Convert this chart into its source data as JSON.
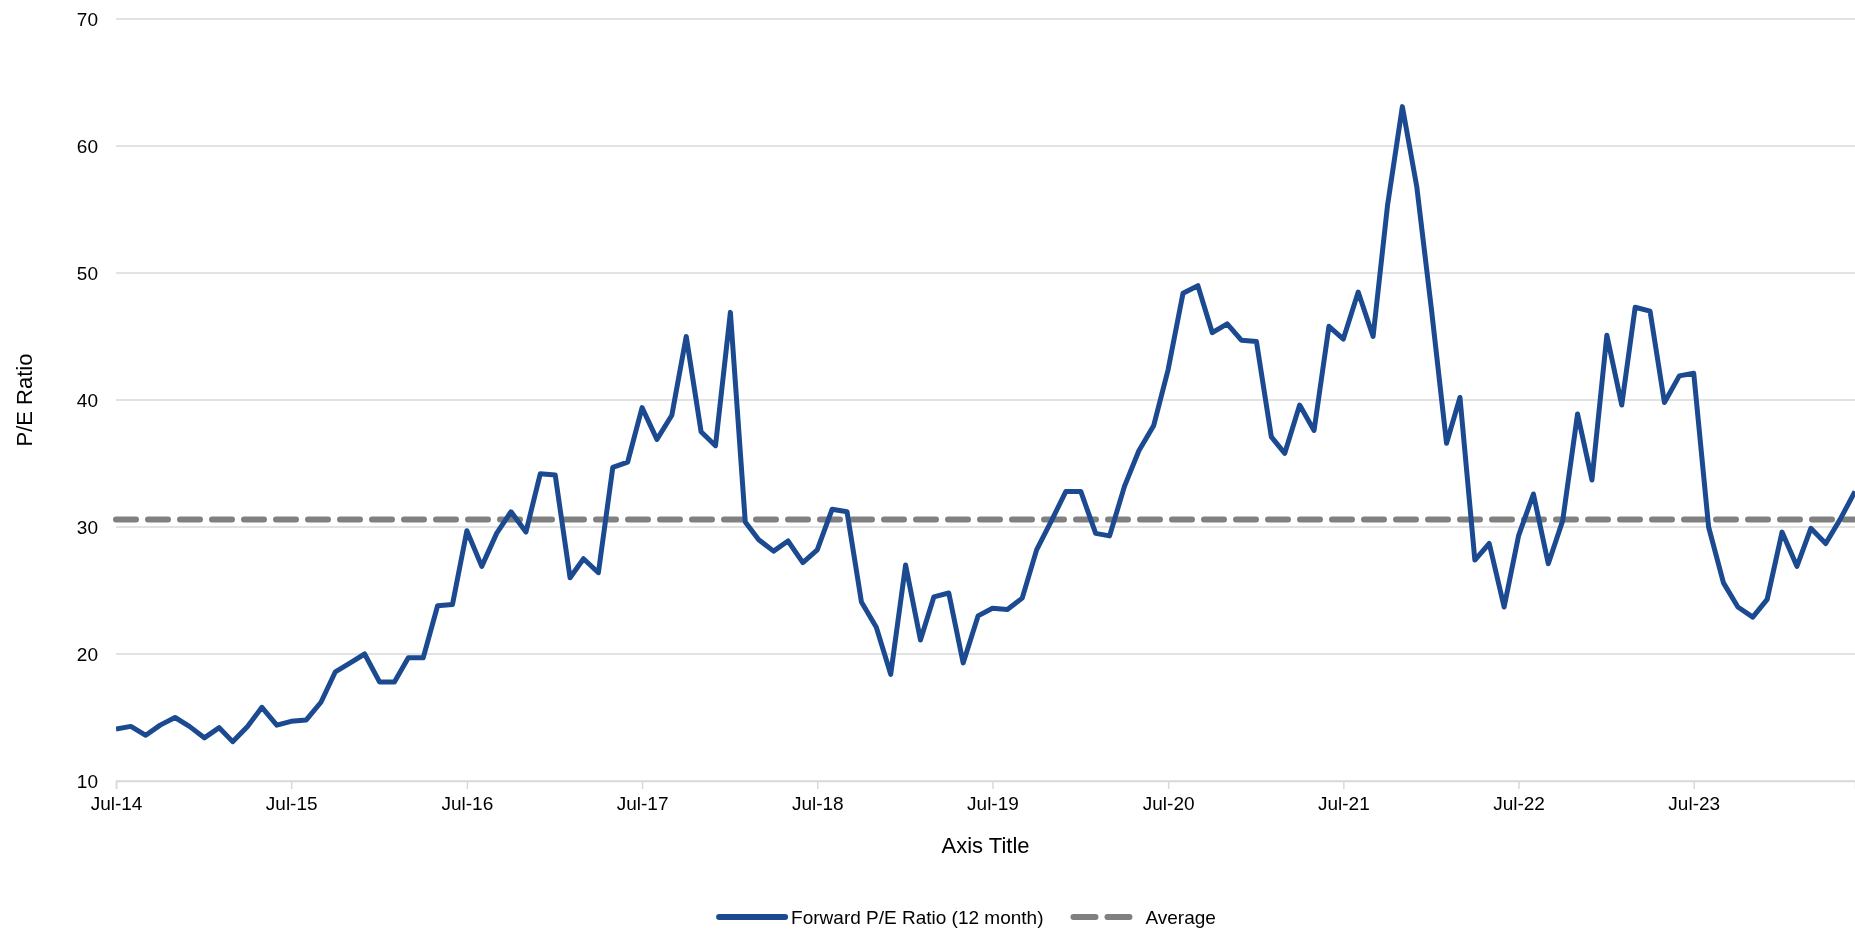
{
  "chart_data": {
    "type": "line",
    "xlabel": "Axis Title",
    "ylabel": "P/E Ratio",
    "x": [
      "2014-07",
      "2014-08",
      "2014-09",
      "2014-10",
      "2014-11",
      "2014-12",
      "2015-01",
      "2015-02",
      "2015-03",
      "2015-04",
      "2015-05",
      "2015-06",
      "2015-07",
      "2015-08",
      "2015-09",
      "2015-10",
      "2015-11",
      "2015-12",
      "2016-01",
      "2016-02",
      "2016-03",
      "2016-04",
      "2016-05",
      "2016-06",
      "2016-07",
      "2016-08",
      "2016-09",
      "2016-10",
      "2016-11",
      "2016-12",
      "2017-01",
      "2017-02",
      "2017-03",
      "2017-04",
      "2017-05",
      "2017-06",
      "2017-07",
      "2017-08",
      "2017-09",
      "2017-10",
      "2017-11",
      "2017-12",
      "2018-01",
      "2018-02",
      "2018-03",
      "2018-04",
      "2018-05",
      "2018-06",
      "2018-07",
      "2018-08",
      "2018-09",
      "2018-10",
      "2018-11",
      "2018-12",
      "2019-01",
      "2019-02",
      "2019-03",
      "2019-04",
      "2019-05",
      "2019-06",
      "2019-07",
      "2019-08",
      "2019-09",
      "2019-10",
      "2019-11",
      "2019-12",
      "2020-01",
      "2020-02",
      "2020-03",
      "2020-04",
      "2020-05",
      "2020-06",
      "2020-07",
      "2020-08",
      "2020-09",
      "2020-10",
      "2020-11",
      "2020-12",
      "2021-01",
      "2021-02",
      "2021-03",
      "2021-04",
      "2021-05",
      "2021-06",
      "2021-07",
      "2021-08",
      "2021-09",
      "2021-10",
      "2021-11",
      "2021-12",
      "2022-01",
      "2022-02",
      "2022-03",
      "2022-04",
      "2022-05",
      "2022-06",
      "2022-07",
      "2022-08",
      "2022-09",
      "2022-10",
      "2022-11",
      "2022-12",
      "2023-01",
      "2023-02",
      "2023-03",
      "2023-04",
      "2023-05",
      "2023-06",
      "2023-07",
      "2023-08",
      "2023-09",
      "2023-10",
      "2023-11",
      "2023-12",
      "2024-01",
      "2024-02",
      "2024-03",
      "2024-04",
      "2024-05",
      "2024-06"
    ],
    "series": [
      {
        "name": "Forward P/E Ratio (12 month)",
        "color": "#1b4a91",
        "line_style": "solid",
        "values": [
          14.1,
          14.3,
          13.6,
          14.4,
          15.0,
          14.3,
          13.4,
          14.2,
          13.1,
          14.3,
          15.8,
          14.4,
          14.7,
          14.8,
          16.2,
          18.6,
          19.3,
          20.0,
          17.8,
          17.8,
          19.7,
          19.7,
          23.8,
          23.9,
          29.7,
          26.9,
          29.5,
          31.2,
          29.6,
          34.2,
          34.1,
          26.0,
          27.5,
          26.4,
          34.7,
          35.1,
          39.4,
          36.9,
          38.8,
          45.0,
          37.5,
          36.4,
          46.9,
          30.4,
          29.0,
          28.1,
          28.9,
          27.2,
          28.2,
          31.4,
          31.2,
          24.1,
          22.1,
          18.4,
          27.0,
          21.1,
          24.5,
          24.8,
          19.3,
          23.0,
          23.6,
          23.5,
          24.4,
          28.2,
          30.5,
          32.8,
          32.8,
          29.5,
          29.3,
          33.2,
          36.0,
          38.0,
          42.4,
          48.4,
          49.0,
          45.3,
          46.0,
          44.7,
          44.6,
          37.1,
          35.8,
          39.6,
          37.6,
          45.8,
          44.8,
          48.5,
          45.0,
          55.3,
          63.1,
          56.8,
          47.0,
          36.6,
          40.2,
          27.4,
          28.7,
          23.7,
          29.3,
          32.6,
          27.1,
          30.5,
          38.9,
          33.7,
          45.1,
          39.6,
          47.3,
          47.0,
          39.8,
          41.9,
          42.1,
          30.0,
          25.6,
          23.7,
          22.9,
          24.3,
          29.6,
          26.9,
          29.9,
          28.7,
          30.6,
          32.8
        ]
      }
    ],
    "ref_lines": [
      {
        "axis": "y",
        "value": 30.6,
        "label": "Average",
        "color": "#808080",
        "line_style": "dashed"
      }
    ],
    "xlim": [
      "2014-07",
      "2024-06"
    ],
    "xticks": [
      {
        "value": "2014-07",
        "label": "Jul-14"
      },
      {
        "value": "2015-07",
        "label": "Jul-15"
      },
      {
        "value": "2016-07",
        "label": "Jul-16"
      },
      {
        "value": "2017-07",
        "label": "Jul-17"
      },
      {
        "value": "2018-07",
        "label": "Jul-18"
      },
      {
        "value": "2019-07",
        "label": "Jul-19"
      },
      {
        "value": "2020-07",
        "label": "Jul-20"
      },
      {
        "value": "2021-07",
        "label": "Jul-21"
      },
      {
        "value": "2022-07",
        "label": "Jul-22"
      },
      {
        "value": "2023-07",
        "label": "Jul-23"
      }
    ],
    "ylim": [
      10,
      70
    ],
    "yticks": [
      10,
      20,
      30,
      40,
      50,
      60,
      70
    ],
    "grid": "y",
    "legend": "bottom",
    "marker": "none"
  }
}
